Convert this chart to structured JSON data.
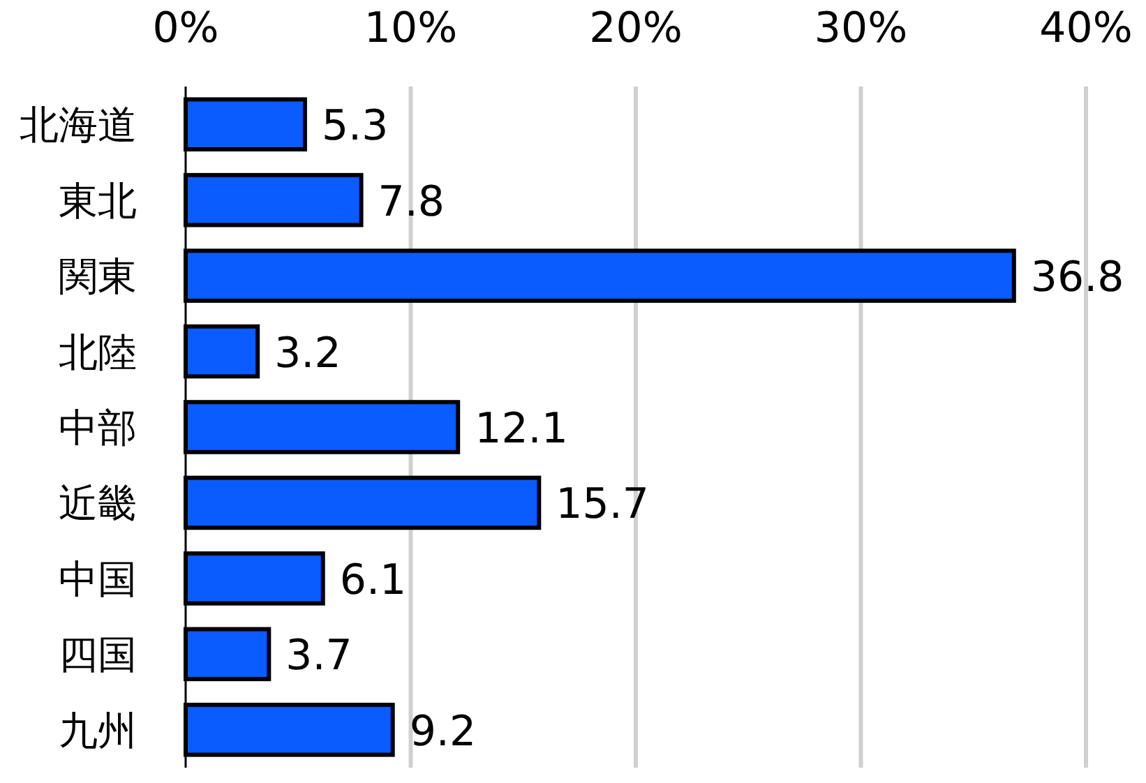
{
  "chart_data": {
    "type": "bar",
    "orientation": "horizontal",
    "categories": [
      "北海道",
      "東北",
      "関東",
      "北陸",
      "中部",
      "近畿",
      "中国",
      "四国",
      "九州"
    ],
    "values": [
      5.3,
      7.8,
      36.8,
      3.2,
      12.1,
      15.7,
      6.1,
      3.7,
      9.2
    ],
    "color": "#0a5cff",
    "xlim": [
      0,
      40
    ],
    "xticks": [
      {
        "value": 0,
        "label": "0%"
      },
      {
        "value": 10,
        "label": "10%"
      },
      {
        "value": 20,
        "label": "20%"
      },
      {
        "value": 30,
        "label": "30%"
      },
      {
        "value": 40,
        "label": "40%"
      }
    ],
    "grid": "x",
    "data_labels": true
  }
}
